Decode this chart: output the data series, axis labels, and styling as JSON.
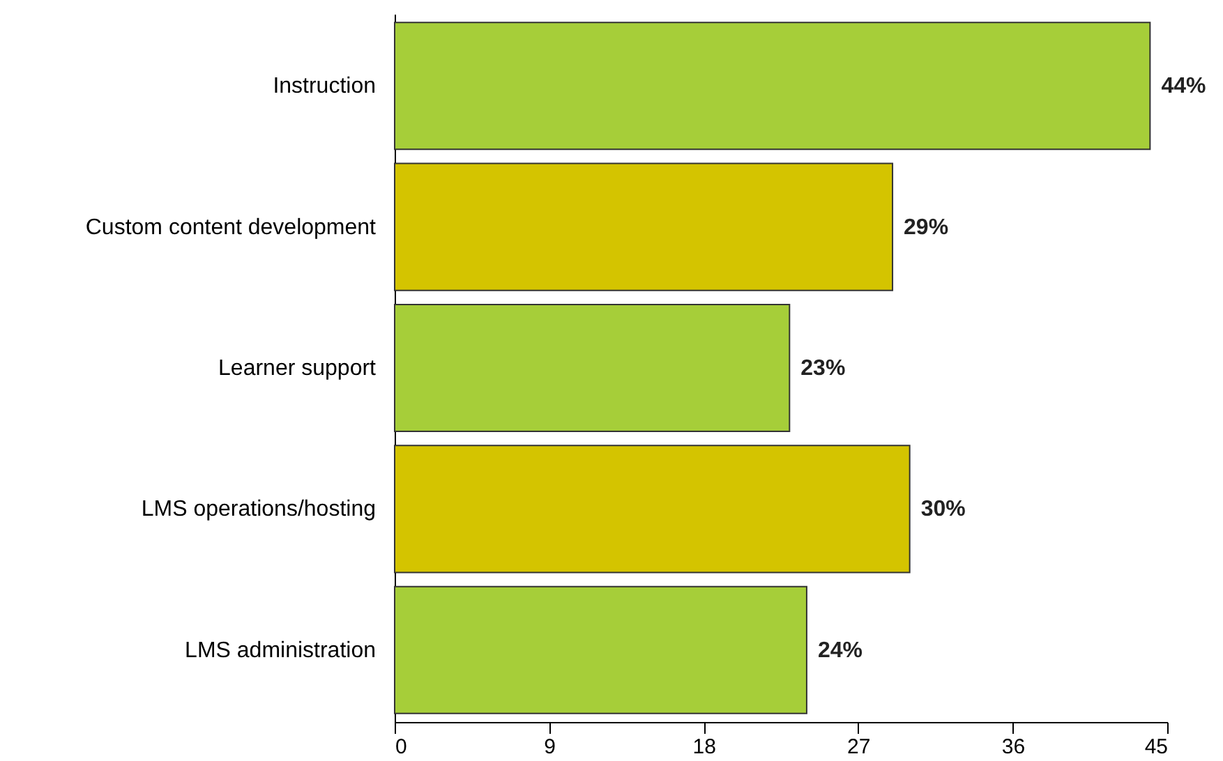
{
  "chart_data": {
    "type": "bar",
    "orientation": "horizontal",
    "categories": [
      "Instruction",
      "Custom content development",
      "Learner support",
      "LMS operations/hosting",
      "LMS administration"
    ],
    "values": [
      44,
      29,
      23,
      30,
      24
    ],
    "colors": [
      "#a6ce39",
      "#d4c400",
      "#a6ce39",
      "#d4c400",
      "#a6ce39"
    ],
    "value_labels": [
      "44%",
      "29%",
      "23%",
      "30%",
      "24%"
    ],
    "xlim": [
      0,
      45
    ],
    "xticks": [
      0,
      9,
      18,
      27,
      36,
      45
    ],
    "grid": false
  }
}
